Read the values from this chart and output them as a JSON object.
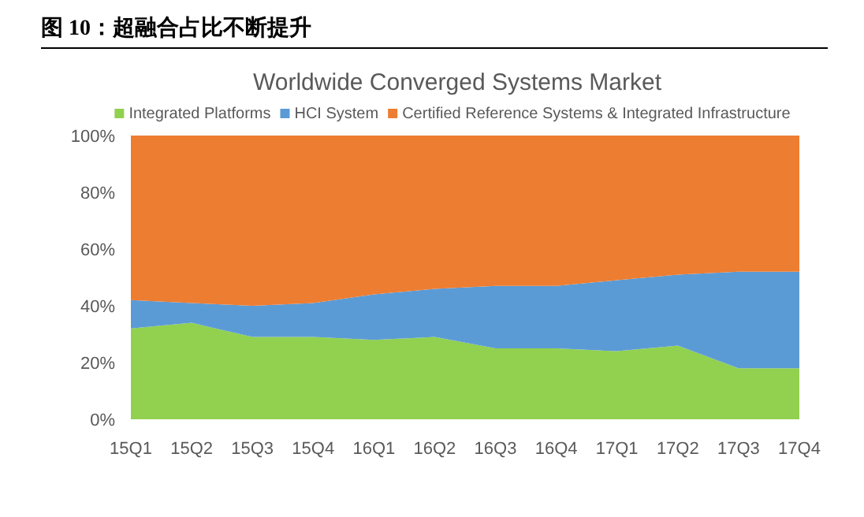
{
  "chart_data": {
    "type": "area",
    "stacked": true,
    "title": "图 10：超融合占比不断提升",
    "subtitle": "Worldwide Converged Systems Market",
    "categories": [
      "15Q1",
      "15Q2",
      "15Q3",
      "15Q4",
      "16Q1",
      "16Q2",
      "16Q3",
      "16Q4",
      "17Q1",
      "17Q2",
      "17Q3",
      "17Q4"
    ],
    "series": [
      {
        "name": "Integrated Platforms",
        "color": "#92d050",
        "values": [
          32,
          34,
          29,
          29,
          28,
          29,
          25,
          25,
          24,
          26,
          18,
          18
        ]
      },
      {
        "name": "HCI System",
        "color": "#5b9bd5",
        "values": [
          10,
          7,
          11,
          12,
          16,
          17,
          22,
          22,
          25,
          25,
          34,
          34
        ]
      },
      {
        "name": "Certified Reference Systems & Integrated Infrastructure",
        "color": "#ed7d31",
        "values": [
          58,
          59,
          60,
          59,
          56,
          54,
          53,
          53,
          51,
          49,
          48,
          48
        ]
      }
    ],
    "ylim": [
      0,
      100
    ],
    "yticks": [
      {
        "value": 0,
        "label": "0%"
      },
      {
        "value": 20,
        "label": "20%"
      },
      {
        "value": 40,
        "label": "40%"
      },
      {
        "value": 60,
        "label": "60%"
      },
      {
        "value": 80,
        "label": "80%"
      },
      {
        "value": 100,
        "label": "100%"
      }
    ],
    "legend": "top"
  }
}
